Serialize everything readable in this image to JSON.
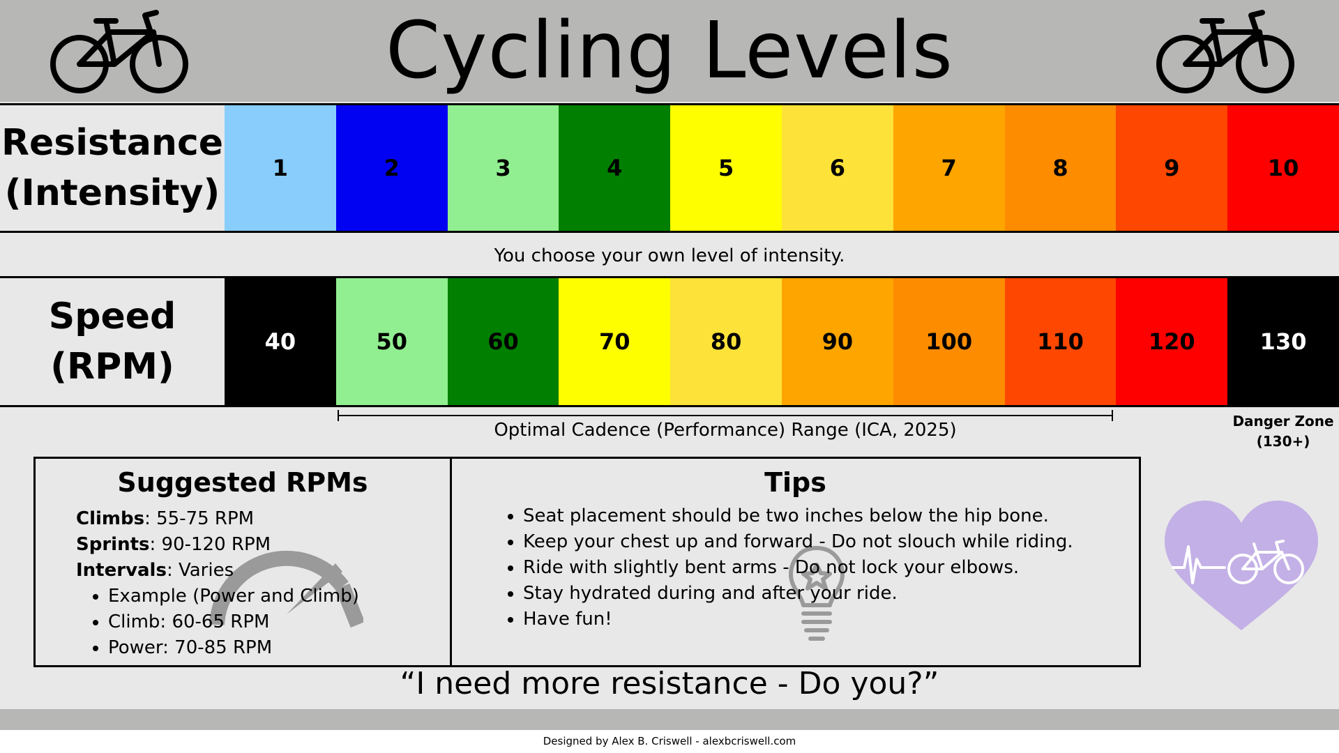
{
  "title": "Cycling Levels",
  "resistance": {
    "label_line1": "Resistance",
    "label_line2": "(Intensity)",
    "levels": [
      {
        "value": "1",
        "color": "#88cdfb"
      },
      {
        "value": "2",
        "color": "#0202f2"
      },
      {
        "value": "3",
        "color": "#91ef91"
      },
      {
        "value": "4",
        "color": "#017f00"
      },
      {
        "value": "5",
        "color": "#fefe00"
      },
      {
        "value": "6",
        "color": "#fde239"
      },
      {
        "value": "7",
        "color": "#fea500"
      },
      {
        "value": "8",
        "color": "#fd8c01"
      },
      {
        "value": "9",
        "color": "#fe4701"
      },
      {
        "value": "10",
        "color": "#fe0000"
      }
    ]
  },
  "intensity_note": "You choose your own level of intensity.",
  "speed": {
    "label_line1": "Speed",
    "label_line2": "(RPM)",
    "levels": [
      {
        "value": "40",
        "color": "#000000",
        "text_color": "#ffffff"
      },
      {
        "value": "50",
        "color": "#91ef91",
        "text_color": "#000000"
      },
      {
        "value": "60",
        "color": "#017f00",
        "text_color": "#000000"
      },
      {
        "value": "70",
        "color": "#fefe00",
        "text_color": "#000000"
      },
      {
        "value": "80",
        "color": "#fde239",
        "text_color": "#000000"
      },
      {
        "value": "90",
        "color": "#fea500",
        "text_color": "#000000"
      },
      {
        "value": "100",
        "color": "#fd8c01",
        "text_color": "#000000"
      },
      {
        "value": "110",
        "color": "#fe4701",
        "text_color": "#000000"
      },
      {
        "value": "120",
        "color": "#fe0000",
        "text_color": "#000000"
      },
      {
        "value": "130",
        "color": "#000000",
        "text_color": "#ffffff"
      }
    ]
  },
  "optimal_range_label": "Optimal Cadence (Performance) Range (ICA, 2025)",
  "danger_zone": {
    "line1": "Danger Zone",
    "line2": "(130+)"
  },
  "suggested": {
    "title": "Suggested RPMs",
    "climbs_label": "Climbs",
    "climbs_value": ": 55-75 RPM",
    "sprints_label": "Sprints",
    "sprints_value": ": 90-120 RPM",
    "intervals_label": "Intervals",
    "intervals_value": ": Varies",
    "interval_items": [
      "Example (Power and Climb)",
      "Climb: 60-65 RPM",
      "Power: 70-85 RPM"
    ]
  },
  "tips": {
    "title": "Tips",
    "items": [
      "Seat placement should be two inches below the hip bone.",
      "Keep your chest up and forward - Do not slouch while riding.",
      "Ride with slightly bent arms - Do not lock your elbows.",
      "Stay hydrated during and after your ride.",
      "Have fun!"
    ]
  },
  "quote": "“I need more resistance - Do you?”",
  "credit": "Designed by Alex B. Criswell - alexbcriswell.com",
  "icons": {
    "header_left": "bicycle-icon",
    "header_right": "bicycle-icon",
    "suggested": "speedometer-icon",
    "tips": "lightbulb-icon",
    "side": "heart-bicycle-icon"
  },
  "colors": {
    "header_bg": "#b7b7b6",
    "page_bg": "#e8e8e8",
    "heart": "#c3b0e6"
  }
}
